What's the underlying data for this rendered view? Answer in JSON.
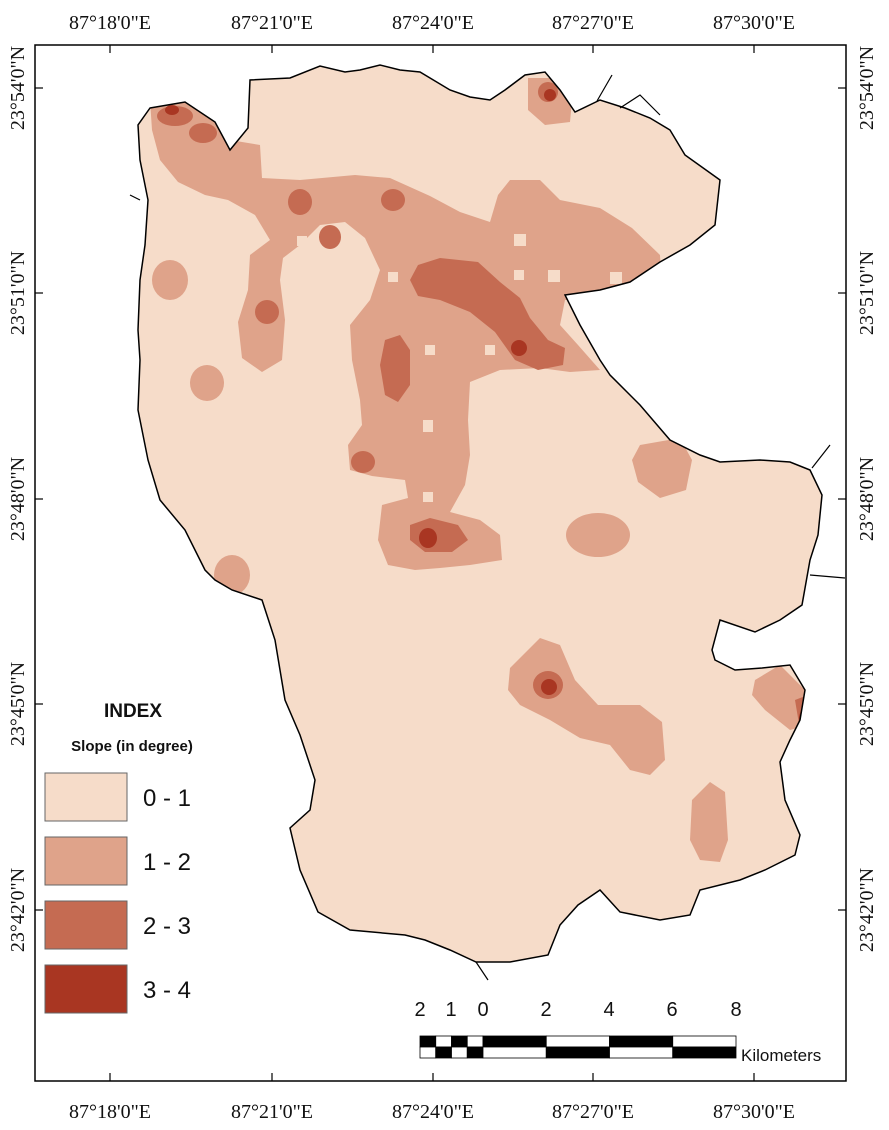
{
  "map": {
    "top_lon_labels": [
      "87°18'0\"E",
      "87°21'0\"E",
      "87°24'0\"E",
      "87°27'0\"E",
      "87°30'0\"E"
    ],
    "bottom_lon_labels": [
      "87°18'0\"E",
      "87°21'0\"E",
      "87°24'0\"E",
      "87°27'0\"E",
      "87°30'0\"E"
    ],
    "left_lat_labels": [
      "23°54'0\"N",
      "23°51'0\"N",
      "23°48'0\"N",
      "23°45'0\"N",
      "23°42'0\"N"
    ],
    "right_lat_labels": [
      "23°54'0\"N",
      "23°51'0\"N",
      "23°48'0\"N",
      "23°45'0\"N",
      "23°42'0\"N"
    ]
  },
  "legend": {
    "title": "INDEX",
    "subtitle": "Slope (in degree)",
    "classes": [
      {
        "label": "0 - 1",
        "color": "#f6dcc9"
      },
      {
        "label": "1 - 2",
        "color": "#dfa38a"
      },
      {
        "label": "2 - 3",
        "color": "#c56b52"
      },
      {
        "label": "3 - 4",
        "color": "#a93622"
      }
    ]
  },
  "scalebar": {
    "numbers": [
      "2",
      "1",
      "0",
      "2",
      "4",
      "6",
      "8"
    ],
    "unit": "Kilometers"
  }
}
